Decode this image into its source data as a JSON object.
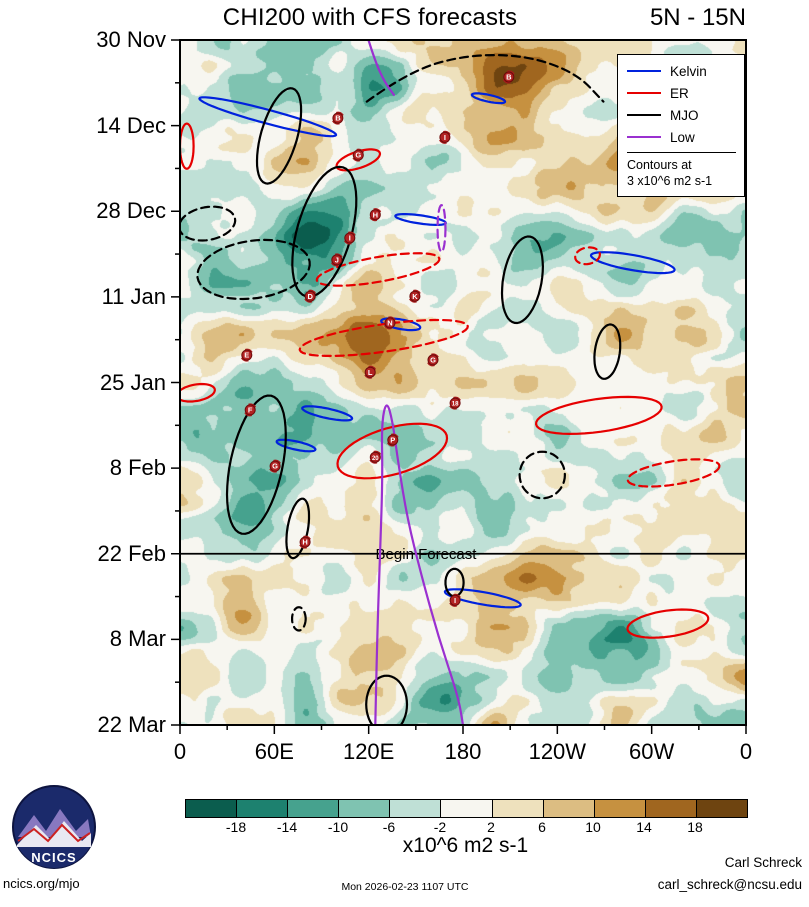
{
  "header": {
    "title": "CHI200 with CFS forecasts",
    "subtitle": "5N - 15N"
  },
  "legend": {
    "items": [
      {
        "label": "Kelvin",
        "color": "#0022dd"
      },
      {
        "label": "ER",
        "color": "#e60000"
      },
      {
        "label": "MJO",
        "color": "#000000"
      },
      {
        "label": "Low",
        "color": "#9a30d0"
      }
    ],
    "note_line1": "Contours at",
    "note_line2": "3 x10^6 m2 s-1"
  },
  "annotations": {
    "begin_forecast": "Begin Forecast"
  },
  "colorbar": {
    "labels": [
      "-18",
      "-14",
      "-10",
      "-6",
      "-2",
      "2",
      "6",
      "10",
      "14",
      "18"
    ],
    "colors": [
      "#0b5d4e",
      "#1d816f",
      "#46a28e",
      "#7fc3b1",
      "#bfe0d6",
      "#f7f6f0",
      "#eee1bd",
      "#dcbd82",
      "#c69140",
      "#a0661f",
      "#6e4410"
    ],
    "units": "x10^6 m2 s-1"
  },
  "footer": {
    "logo_text": "NCICS",
    "site": "ncics.org/mjo",
    "timestamp": "Mon 2026-02-23 1107 UTC",
    "author": "Carl Schreck",
    "email": "carl_schreck@ncsu.edu"
  },
  "chart_data": {
    "type": "heatmap",
    "subtype": "hovmoller-time-longitude",
    "title": "CHI200 with CFS forecasts",
    "latitude_band": "5N - 15N",
    "x_axis": {
      "ticks": [
        "0",
        "60E",
        "120E",
        "180",
        "120W",
        "60W",
        "0"
      ],
      "range_degrees": [
        0,
        360
      ]
    },
    "y_axis": {
      "ticks": [
        "30 Nov",
        "14 Dec",
        "28 Dec",
        "11 Jan",
        "25 Jan",
        "8 Feb",
        "22 Feb",
        "8 Mar",
        "22 Mar"
      ],
      "direction": "time-downward"
    },
    "units": "x10^6 m2 s-1",
    "contour_interval": 3,
    "fill_levels": [
      -18,
      -14,
      -10,
      -6,
      -2,
      2,
      6,
      10,
      14,
      18
    ],
    "fill_colors": [
      "#0b5d4e",
      "#1d816f",
      "#46a28e",
      "#7fc3b1",
      "#bfe0d6",
      "#f7f6f0",
      "#eee1bd",
      "#dcbd82",
      "#c69140",
      "#a0661f",
      "#6e4410"
    ],
    "begin_forecast_frac": 0.75,
    "anomaly_blobs": [
      [
        0.27,
        0.27,
        0.1,
        0.06,
        -14
      ],
      [
        0.12,
        0.31,
        0.07,
        0.05,
        -9
      ],
      [
        0.6,
        0.34,
        0.05,
        0.05,
        -9
      ],
      [
        0.8,
        0.33,
        0.06,
        0.03,
        -7
      ],
      [
        0.14,
        0.62,
        0.08,
        0.08,
        -13
      ],
      [
        0.38,
        0.67,
        0.07,
        0.06,
        -10
      ],
      [
        0.9,
        0.53,
        0.06,
        0.04,
        -8
      ],
      [
        0.78,
        0.88,
        0.06,
        0.04,
        -9
      ],
      [
        0.47,
        0.96,
        0.07,
        0.05,
        -11
      ],
      [
        0.36,
        0.06,
        0.05,
        0.04,
        -8
      ],
      [
        0.02,
        0.1,
        0.04,
        0.05,
        -8
      ],
      [
        0.6,
        0.05,
        0.09,
        0.05,
        14
      ],
      [
        0.43,
        0.1,
        0.05,
        0.04,
        8
      ],
      [
        0.33,
        0.44,
        0.1,
        0.04,
        8
      ],
      [
        0.06,
        0.45,
        0.05,
        0.04,
        7
      ],
      [
        0.72,
        0.2,
        0.08,
        0.06,
        6
      ],
      [
        0.9,
        0.08,
        0.06,
        0.05,
        8
      ],
      [
        0.1,
        0.82,
        0.08,
        0.06,
        7
      ],
      [
        0.6,
        0.78,
        0.08,
        0.06,
        6
      ],
      [
        0.88,
        0.7,
        0.07,
        0.05,
        6
      ],
      [
        0.25,
        0.93,
        0.06,
        0.04,
        6
      ]
    ],
    "storm_symbols": [
      {
        "label": "B",
        "x": 0.581,
        "y": 0.054
      },
      {
        "label": "B",
        "x": 0.279,
        "y": 0.114
      },
      {
        "label": "I",
        "x": 0.468,
        "y": 0.142
      },
      {
        "label": "G",
        "x": 0.315,
        "y": 0.168
      },
      {
        "label": "H",
        "x": 0.345,
        "y": 0.255
      },
      {
        "label": "I",
        "x": 0.3,
        "y": 0.289
      },
      {
        "label": "J",
        "x": 0.277,
        "y": 0.321
      },
      {
        "label": "D",
        "x": 0.23,
        "y": 0.374
      },
      {
        "label": "K",
        "x": 0.415,
        "y": 0.374
      },
      {
        "label": "N",
        "x": 0.371,
        "y": 0.413
      },
      {
        "label": "E",
        "x": 0.118,
        "y": 0.46
      },
      {
        "label": "G",
        "x": 0.447,
        "y": 0.467
      },
      {
        "label": "L",
        "x": 0.336,
        "y": 0.485
      },
      {
        "label": "18",
        "x": 0.486,
        "y": 0.53
      },
      {
        "label": "F",
        "x": 0.124,
        "y": 0.54
      },
      {
        "label": "P",
        "x": 0.376,
        "y": 0.584
      },
      {
        "label": "20",
        "x": 0.345,
        "y": 0.609
      },
      {
        "label": "G",
        "x": 0.168,
        "y": 0.622
      },
      {
        "label": "H",
        "x": 0.221,
        "y": 0.733
      },
      {
        "label": "I",
        "x": 0.486,
        "y": 0.818
      }
    ],
    "contours": [
      {
        "wave": "Kelvin",
        "style": "solid",
        "ellipse": [
          0.155,
          0.112,
          0.125,
          0.01,
          15
        ]
      },
      {
        "wave": "Kelvin",
        "style": "solid",
        "ellipse": [
          0.545,
          0.085,
          0.03,
          0.005,
          12
        ]
      },
      {
        "wave": "Kelvin",
        "style": "solid",
        "ellipse": [
          0.425,
          0.262,
          0.045,
          0.006,
          8
        ]
      },
      {
        "wave": "Kelvin",
        "style": "solid",
        "ellipse": [
          0.39,
          0.415,
          0.035,
          0.007,
          10
        ]
      },
      {
        "wave": "Kelvin",
        "style": "solid",
        "ellipse": [
          0.26,
          0.545,
          0.045,
          0.007,
          12
        ]
      },
      {
        "wave": "Kelvin",
        "style": "solid",
        "ellipse": [
          0.205,
          0.592,
          0.035,
          0.006,
          12
        ]
      },
      {
        "wave": "Kelvin",
        "style": "solid",
        "ellipse": [
          0.535,
          0.815,
          0.068,
          0.009,
          10
        ]
      },
      {
        "wave": "Kelvin",
        "style": "solid",
        "ellipse": [
          0.8,
          0.325,
          0.075,
          0.011,
          10
        ]
      },
      {
        "wave": "ER",
        "style": "solid",
        "ellipse": [
          0.315,
          0.175,
          0.04,
          0.012,
          -18
        ]
      },
      {
        "wave": "ER",
        "style": "dashed",
        "ellipse": [
          0.35,
          0.335,
          0.11,
          0.018,
          -10
        ]
      },
      {
        "wave": "ER",
        "style": "dashed",
        "ellipse": [
          0.36,
          0.435,
          0.15,
          0.02,
          -8
        ]
      },
      {
        "wave": "ER",
        "style": "solid",
        "ellipse": [
          0.74,
          0.548,
          0.112,
          0.024,
          -8
        ]
      },
      {
        "wave": "ER",
        "style": "solid",
        "ellipse": [
          0.375,
          0.6,
          0.1,
          0.034,
          -16
        ]
      },
      {
        "wave": "ER",
        "style": "dashed",
        "ellipse": [
          0.872,
          0.632,
          0.082,
          0.017,
          -9
        ]
      },
      {
        "wave": "ER",
        "style": "solid",
        "ellipse": [
          0.862,
          0.852,
          0.072,
          0.019,
          -8
        ]
      },
      {
        "wave": "ER",
        "style": "solid",
        "ellipse": [
          0.028,
          0.515,
          0.034,
          0.012,
          -10
        ]
      },
      {
        "wave": "ER",
        "style": "solid",
        "ellipse": [
          0.012,
          0.155,
          0.012,
          0.033,
          0
        ]
      },
      {
        "wave": "ER",
        "style": "dashed",
        "ellipse": [
          0.72,
          0.315,
          0.022,
          0.012,
          -10
        ]
      },
      {
        "wave": "MJO",
        "style": "solid",
        "ellipse": [
          0.175,
          0.14,
          0.032,
          0.072,
          16
        ]
      },
      {
        "wave": "MJO",
        "style": "dashed",
        "path": [
          [
            0.33,
            0.09
          ],
          [
            0.4,
            0.048
          ],
          [
            0.5,
            0.022
          ],
          [
            0.61,
            0.022
          ],
          [
            0.7,
            0.048
          ],
          [
            0.748,
            0.09
          ]
        ]
      },
      {
        "wave": "MJO",
        "style": "solid",
        "ellipse": [
          0.255,
          0.28,
          0.048,
          0.098,
          16
        ]
      },
      {
        "wave": "MJO",
        "style": "dashed",
        "ellipse": [
          0.13,
          0.335,
          0.1,
          0.042,
          -8
        ]
      },
      {
        "wave": "MJO",
        "style": "dashed",
        "ellipse": [
          0.048,
          0.268,
          0.05,
          0.024,
          -10
        ]
      },
      {
        "wave": "MJO",
        "style": "solid",
        "ellipse": [
          0.605,
          0.35,
          0.034,
          0.064,
          10
        ]
      },
      {
        "wave": "MJO",
        "style": "solid",
        "ellipse": [
          0.755,
          0.455,
          0.022,
          0.04,
          8
        ]
      },
      {
        "wave": "MJO",
        "style": "solid",
        "ellipse": [
          0.135,
          0.62,
          0.046,
          0.103,
          12
        ]
      },
      {
        "wave": "MJO",
        "style": "solid",
        "ellipse": [
          0.208,
          0.713,
          0.018,
          0.044,
          10
        ]
      },
      {
        "wave": "MJO",
        "style": "dashed",
        "ellipse": [
          0.64,
          0.635,
          0.04,
          0.034,
          0
        ]
      },
      {
        "wave": "MJO",
        "style": "solid",
        "ellipse": [
          0.485,
          0.792,
          0.016,
          0.02,
          0
        ]
      },
      {
        "wave": "MJO",
        "style": "solid",
        "ellipse": [
          0.365,
          0.97,
          0.036,
          0.042,
          0
        ]
      },
      {
        "wave": "MJO",
        "style": "dashed",
        "ellipse": [
          0.21,
          0.845,
          0.012,
          0.017,
          0
        ]
      },
      {
        "wave": "Low",
        "style": "solid",
        "path": [
          [
            0.345,
            1.0
          ],
          [
            0.348,
            0.88
          ],
          [
            0.353,
            0.76
          ],
          [
            0.358,
            0.64
          ],
          [
            0.356,
            0.56
          ],
          [
            0.365,
            0.525
          ],
          [
            0.376,
            0.558
          ],
          [
            0.386,
            0.62
          ],
          [
            0.402,
            0.7
          ],
          [
            0.426,
            0.78
          ],
          [
            0.456,
            0.87
          ],
          [
            0.492,
            0.96
          ],
          [
            0.5,
            1.0
          ]
        ]
      },
      {
        "wave": "Low",
        "style": "solid",
        "path": [
          [
            0.333,
            0.0
          ],
          [
            0.345,
            0.032
          ],
          [
            0.362,
            0.062
          ],
          [
            0.378,
            0.08
          ]
        ]
      },
      {
        "wave": "Low",
        "style": "dashed",
        "ellipse": [
          0.462,
          0.275,
          0.007,
          0.034,
          0
        ]
      }
    ]
  }
}
